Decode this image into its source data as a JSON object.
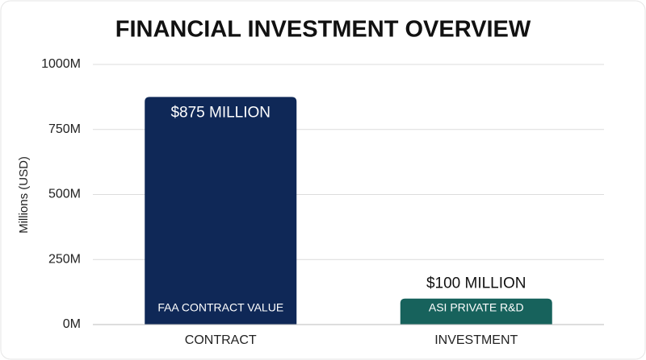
{
  "chart_data": {
    "type": "bar",
    "title": "FINANCIAL INVESTMENT OVERVIEW",
    "y_label": "Millions (USD)",
    "categories": [
      "CONTRACT",
      "INVESTMENT"
    ],
    "values": [
      875,
      100
    ],
    "value_labels": [
      "$875 MILLION",
      "$100 MILLION"
    ],
    "bar_labels": [
      "FAA CONTRACT VALUE",
      "ASI PRIVATE R&D"
    ],
    "colors": [
      "#0f2857",
      "#17625c"
    ],
    "ylim": [
      0,
      1000
    ],
    "yticks": [
      {
        "value": 0,
        "label": "0M"
      },
      {
        "value": 250,
        "label": "250M"
      },
      {
        "value": 500,
        "label": "500M"
      },
      {
        "value": 750,
        "label": "750M"
      },
      {
        "value": 1000,
        "label": "1000M"
      }
    ],
    "grid": true
  }
}
